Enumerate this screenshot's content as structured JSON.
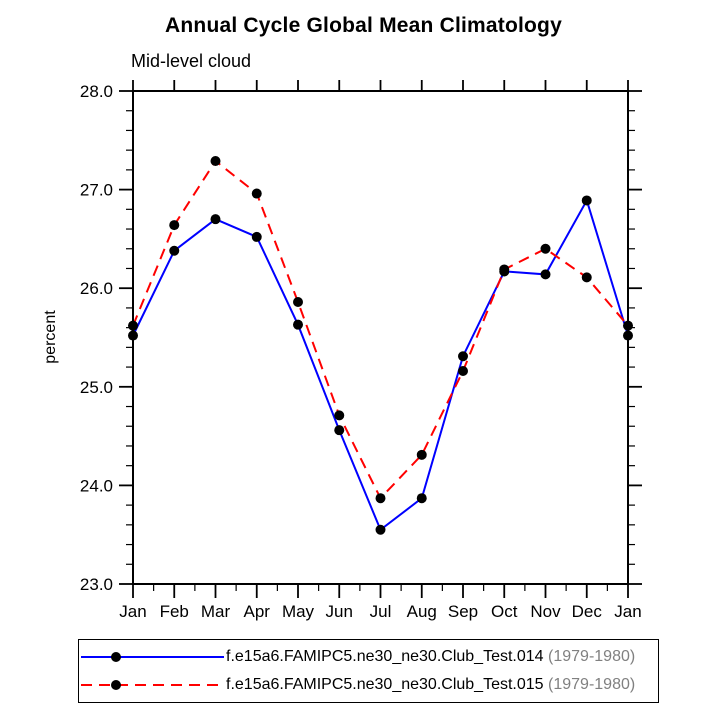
{
  "title": "Annual Cycle Global Mean Climatology",
  "subtitle": "Mid-level cloud",
  "chart_data": {
    "type": "line",
    "categories": [
      "Jan",
      "Feb",
      "Mar",
      "Apr",
      "May",
      "Jun",
      "Jul",
      "Aug",
      "Sep",
      "Oct",
      "Nov",
      "Dec",
      "Jan"
    ],
    "xlabel": "",
    "ylabel": "percent",
    "ylim": [
      23.0,
      28.0
    ],
    "ytick_interval": 1.0,
    "yminor_interval": 0.2,
    "xminor_interval": 0.5,
    "grid": false,
    "legend_position": "bottom",
    "frame_color": "#000000",
    "marker": "filled-circle",
    "marker_color": "#000000",
    "series": [
      {
        "name": "f.e15a6.FAMIPC5.ne30_ne30.Club_Test.014",
        "years": "(1979-1980)",
        "color": "#0000ff",
        "style": "solid",
        "values": [
          25.52,
          26.38,
          26.7,
          26.52,
          25.63,
          24.56,
          23.55,
          23.87,
          25.31,
          26.17,
          26.14,
          26.89,
          25.52
        ]
      },
      {
        "name": "f.e15a6.FAMIPC5.ne30_ne30.Club_Test.015",
        "years": "(1979-1980)",
        "color": "#ff0000",
        "style": "dashed",
        "values": [
          25.62,
          26.64,
          27.29,
          26.96,
          25.86,
          24.71,
          23.87,
          24.31,
          25.16,
          26.19,
          26.4,
          26.11,
          25.62
        ]
      }
    ]
  },
  "legend": {
    "years_color": "#808080"
  }
}
